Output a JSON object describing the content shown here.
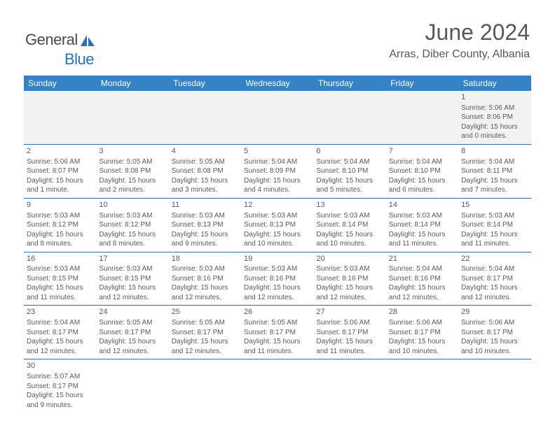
{
  "logo": {
    "text1": "General",
    "text2": "Blue"
  },
  "header": {
    "month": "June 2024",
    "location": "Arras, Diber County, Albania"
  },
  "colors": {
    "header_bg": "#3583c5",
    "row_divider": "#2e6ca8",
    "shade": "#f2f2f2",
    "text": "#5a5a5a"
  },
  "days": [
    "Sunday",
    "Monday",
    "Tuesday",
    "Wednesday",
    "Thursday",
    "Friday",
    "Saturday"
  ],
  "weeks": [
    [
      null,
      null,
      null,
      null,
      null,
      null,
      {
        "n": "1",
        "sr": "5:06 AM",
        "ss": "8:06 PM",
        "dl": "15 hours and 0 minutes."
      }
    ],
    [
      {
        "n": "2",
        "sr": "5:06 AM",
        "ss": "8:07 PM",
        "dl": "15 hours and 1 minute."
      },
      {
        "n": "3",
        "sr": "5:05 AM",
        "ss": "8:08 PM",
        "dl": "15 hours and 2 minutes."
      },
      {
        "n": "4",
        "sr": "5:05 AM",
        "ss": "8:08 PM",
        "dl": "15 hours and 3 minutes."
      },
      {
        "n": "5",
        "sr": "5:04 AM",
        "ss": "8:09 PM",
        "dl": "15 hours and 4 minutes."
      },
      {
        "n": "6",
        "sr": "5:04 AM",
        "ss": "8:10 PM",
        "dl": "15 hours and 5 minutes."
      },
      {
        "n": "7",
        "sr": "5:04 AM",
        "ss": "8:10 PM",
        "dl": "15 hours and 6 minutes."
      },
      {
        "n": "8",
        "sr": "5:04 AM",
        "ss": "8:11 PM",
        "dl": "15 hours and 7 minutes."
      }
    ],
    [
      {
        "n": "9",
        "sr": "5:03 AM",
        "ss": "8:12 PM",
        "dl": "15 hours and 8 minutes."
      },
      {
        "n": "10",
        "sr": "5:03 AM",
        "ss": "8:12 PM",
        "dl": "15 hours and 8 minutes."
      },
      {
        "n": "11",
        "sr": "5:03 AM",
        "ss": "8:13 PM",
        "dl": "15 hours and 9 minutes."
      },
      {
        "n": "12",
        "sr": "5:03 AM",
        "ss": "8:13 PM",
        "dl": "15 hours and 10 minutes."
      },
      {
        "n": "13",
        "sr": "5:03 AM",
        "ss": "8:14 PM",
        "dl": "15 hours and 10 minutes."
      },
      {
        "n": "14",
        "sr": "5:03 AM",
        "ss": "8:14 PM",
        "dl": "15 hours and 11 minutes."
      },
      {
        "n": "15",
        "sr": "5:03 AM",
        "ss": "8:14 PM",
        "dl": "15 hours and 11 minutes."
      }
    ],
    [
      {
        "n": "16",
        "sr": "5:03 AM",
        "ss": "8:15 PM",
        "dl": "15 hours and 11 minutes."
      },
      {
        "n": "17",
        "sr": "5:03 AM",
        "ss": "8:15 PM",
        "dl": "15 hours and 12 minutes."
      },
      {
        "n": "18",
        "sr": "5:03 AM",
        "ss": "8:16 PM",
        "dl": "15 hours and 12 minutes."
      },
      {
        "n": "19",
        "sr": "5:03 AM",
        "ss": "8:16 PM",
        "dl": "15 hours and 12 minutes."
      },
      {
        "n": "20",
        "sr": "5:03 AM",
        "ss": "8:16 PM",
        "dl": "15 hours and 12 minutes."
      },
      {
        "n": "21",
        "sr": "5:04 AM",
        "ss": "8:16 PM",
        "dl": "15 hours and 12 minutes."
      },
      {
        "n": "22",
        "sr": "5:04 AM",
        "ss": "8:17 PM",
        "dl": "15 hours and 12 minutes."
      }
    ],
    [
      {
        "n": "23",
        "sr": "5:04 AM",
        "ss": "8:17 PM",
        "dl": "15 hours and 12 minutes."
      },
      {
        "n": "24",
        "sr": "5:05 AM",
        "ss": "8:17 PM",
        "dl": "15 hours and 12 minutes."
      },
      {
        "n": "25",
        "sr": "5:05 AM",
        "ss": "8:17 PM",
        "dl": "15 hours and 12 minutes."
      },
      {
        "n": "26",
        "sr": "5:05 AM",
        "ss": "8:17 PM",
        "dl": "15 hours and 11 minutes."
      },
      {
        "n": "27",
        "sr": "5:06 AM",
        "ss": "8:17 PM",
        "dl": "15 hours and 11 minutes."
      },
      {
        "n": "28",
        "sr": "5:06 AM",
        "ss": "8:17 PM",
        "dl": "15 hours and 10 minutes."
      },
      {
        "n": "29",
        "sr": "5:06 AM",
        "ss": "8:17 PM",
        "dl": "15 hours and 10 minutes."
      }
    ],
    [
      {
        "n": "30",
        "sr": "5:07 AM",
        "ss": "8:17 PM",
        "dl": "15 hours and 9 minutes."
      },
      null,
      null,
      null,
      null,
      null,
      null
    ]
  ],
  "labels": {
    "sunrise": "Sunrise:",
    "sunset": "Sunset:",
    "daylight": "Daylight:"
  }
}
